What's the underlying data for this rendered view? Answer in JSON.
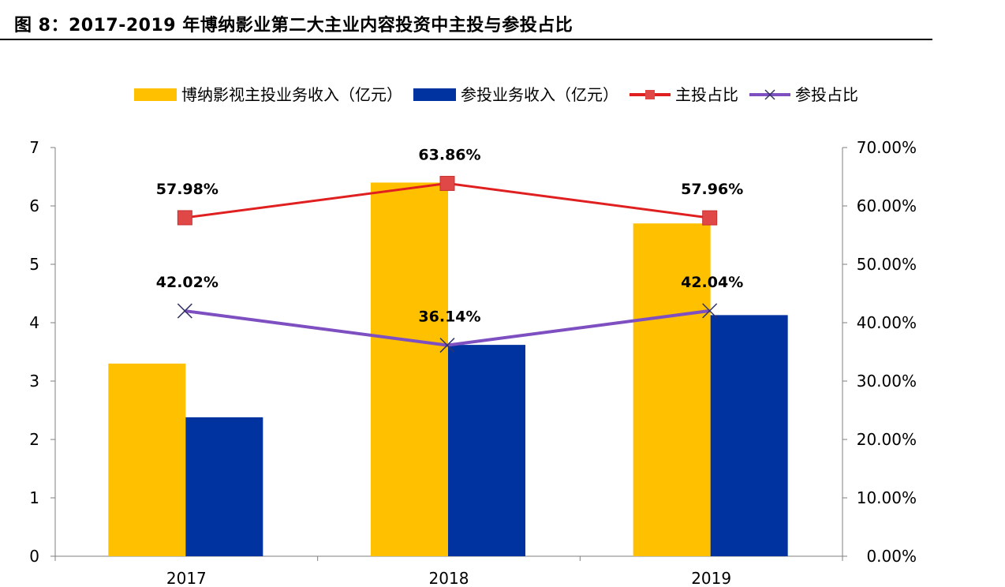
{
  "title": "图 8：2017-2019 年博纳影业第二大主业内容投资中主投与参投占比",
  "chart_data": {
    "type": "bar",
    "categories": [
      "2017",
      "2018",
      "2019"
    ],
    "series": [
      {
        "name": "博纳影视主投业务收入（亿元）",
        "kind": "bar",
        "axis": "left",
        "color": "#FFC000",
        "values": [
          3.3,
          6.4,
          5.7
        ]
      },
      {
        "name": "参投业务收入（亿元）",
        "kind": "bar",
        "axis": "left",
        "color": "#0033A0",
        "values": [
          2.38,
          3.62,
          4.13
        ]
      },
      {
        "name": "主投占比",
        "kind": "line",
        "axis": "right",
        "color": "#E02020",
        "marker": "square",
        "values": [
          57.98,
          63.86,
          57.96
        ],
        "labels": [
          "57.98%",
          "63.86%",
          "57.96%"
        ]
      },
      {
        "name": "参投占比",
        "kind": "line",
        "axis": "right",
        "color": "#7E4FC0",
        "marker": "x",
        "values": [
          42.02,
          36.14,
          42.04
        ],
        "labels": [
          "42.02%",
          "36.14%",
          "42.04%"
        ]
      }
    ],
    "y_left": {
      "range": [
        0,
        7
      ],
      "ticks": [
        "0",
        "1",
        "2",
        "3",
        "4",
        "5",
        "6",
        "7"
      ]
    },
    "y_right": {
      "range": [
        0,
        70
      ],
      "ticks": [
        "0.00%",
        "10.00%",
        "20.00%",
        "30.00%",
        "40.00%",
        "50.00%",
        "60.00%",
        "70.00%"
      ]
    },
    "legend_position": "top",
    "grid": false
  }
}
